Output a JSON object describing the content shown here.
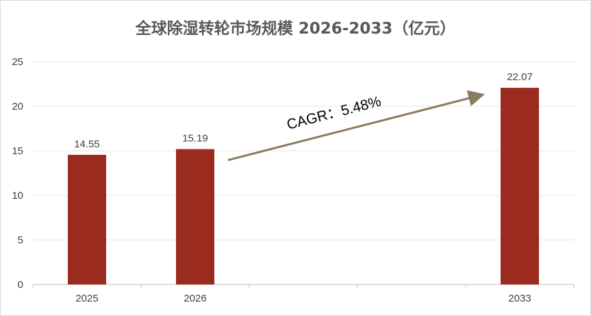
{
  "chart_data": {
    "type": "bar",
    "title": "全球除湿转轮市场规模 2026-2033（亿元）",
    "categories": [
      "2025",
      "2026",
      "2033"
    ],
    "values": [
      14.55,
      15.19,
      22.07
    ],
    "data_labels": [
      "14.55",
      "15.19",
      "22.07"
    ],
    "yticks": [
      "0",
      "5",
      "10",
      "15",
      "20",
      "25"
    ],
    "ylim": [
      0,
      25
    ],
    "xlabel": "",
    "ylabel": "",
    "grid": true,
    "legend": "none",
    "annotation": {
      "text": "CAGR：5.48%",
      "from_category": "2026",
      "to_category": "2033"
    },
    "colors": {
      "bar": "#9b2b1e",
      "arrow": "#8b7a5c",
      "grid": "#e6e6e6",
      "axis": "#bfbfbf",
      "text": "#404040"
    }
  }
}
